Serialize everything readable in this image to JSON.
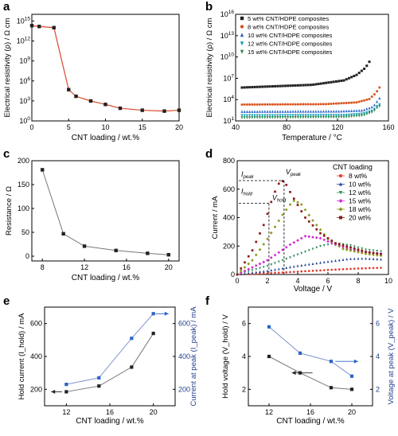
{
  "figure": {
    "panels": [
      "a",
      "b",
      "c",
      "d",
      "e",
      "f"
    ]
  },
  "colors": {
    "axis": "#000000",
    "red": "#d9482b",
    "black": "#222222",
    "gray": "#777777",
    "blue": "#2a64c8",
    "navy": "#23408e",
    "orange": "#d9541e",
    "teal": "#0f9bb0",
    "green": "#2e8b57",
    "magenta": "#d12ad1",
    "olive": "#8a9a1a",
    "darkred": "#8b1a1a",
    "lightred": "#e23a2e"
  },
  "chart_data": [
    {
      "id": "a",
      "type": "line",
      "xlabel": "CNT loading / wt.%",
      "ylabel": "Electrical resistivity (ρ) / Ω cm",
      "xlim": [
        0,
        20
      ],
      "ylim_log10": [
        0,
        16
      ],
      "xticks": [
        "0",
        "5",
        "10",
        "15",
        "20"
      ],
      "yticks_log10": [
        0,
        3,
        6,
        9,
        12,
        15
      ],
      "ytick_labels": [
        "10^0",
        "10^3",
        "10^6",
        "10^9",
        "10^12",
        "10^15"
      ],
      "series": [
        {
          "x": [
            0,
            1,
            3,
            5,
            6,
            8,
            10,
            12,
            15,
            18,
            20
          ],
          "y": [
            200000000000000.0,
            150000000000000.0,
            100000000000000.0,
            50000.0,
            5000.0,
            1000,
            300,
            80,
            40,
            30,
            40
          ]
        }
      ]
    },
    {
      "id": "b",
      "type": "scatter",
      "xlabel": "Temperature / °C",
      "ylabel": "Electrical resistivity (ρ) / Ω cm",
      "xlim": [
        40,
        160
      ],
      "ylim_log10": [
        1,
        16
      ],
      "xticks": [
        "40",
        "80",
        "120",
        "160"
      ],
      "yticks_log10": [
        1,
        4,
        7,
        10,
        13,
        16
      ],
      "ytick_labels": [
        "10^1",
        "10^4",
        "10^7",
        "10^10",
        "10^13",
        "10^16"
      ],
      "series": [
        {
          "name": "5 wt% CNT/HDPE composites",
          "start": 500000.0,
          "curve": [
            [
              100,
              1200000.0
            ],
            [
              125,
              5000000.0
            ],
            [
              135,
              30000000.0
            ],
            [
              142,
              300000000.0
            ],
            [
              146,
              4000000000.0
            ]
          ]
        },
        {
          "name": "8 wt% CNT/HDPE composites",
          "start": 2000.0,
          "curve": [
            [
              110,
              2300.0
            ],
            [
              135,
              4000.0
            ],
            [
              145,
              12000.0
            ],
            [
              150,
              80000.0
            ],
            [
              153,
              500000.0
            ]
          ]
        },
        {
          "name": "10 wt% CNT/HDPE composites",
          "start": 200,
          "curve": [
            [
              120,
              220
            ],
            [
              140,
              300
            ],
            [
              148,
              1000
            ],
            [
              151,
              5000.0
            ],
            [
              153,
              15000.0
            ]
          ]
        },
        {
          "name": "12 wt% CNT/HDPE composites",
          "start": 60,
          "curve": [
            [
              125,
              65
            ],
            [
              140,
              100
            ],
            [
              148,
              300
            ],
            [
              151,
              1200
            ],
            [
              154,
              2500
            ]
          ]
        },
        {
          "name": "15 wt% CNT/HDPE composites",
          "start": 30,
          "curve": [
            [
              125,
              35
            ],
            [
              140,
              60
            ],
            [
              148,
              200
            ],
            [
              151,
              700
            ],
            [
              154,
              1500
            ]
          ]
        }
      ]
    },
    {
      "id": "c",
      "type": "line",
      "xlabel": "CNT loading / wt.%",
      "ylabel": "Resistance / Ω",
      "xlim": [
        7,
        21
      ],
      "ylim": [
        -10,
        200
      ],
      "xticks": [
        "8",
        "12",
        "16",
        "20"
      ],
      "yticks": [
        "0",
        "50",
        "100",
        "150",
        "200"
      ],
      "series": [
        {
          "x": [
            8,
            10,
            12,
            15,
            18,
            20
          ],
          "y": [
            181,
            47,
            21,
            12,
            6,
            3
          ]
        }
      ]
    },
    {
      "id": "d",
      "type": "scatter",
      "xlabel": "Voltage / V",
      "ylabel": "Current / mA",
      "xlim": [
        0,
        10
      ],
      "ylim": [
        0,
        800
      ],
      "xticks": [
        "0",
        "2",
        "4",
        "6",
        "8",
        "10"
      ],
      "yticks": [
        "0",
        "200",
        "400",
        "600",
        "800"
      ],
      "legend_title": "CNT loading",
      "annotations": [
        "I",
        "peak",
        "V",
        "peak",
        "I",
        "hold",
        "V",
        "hold"
      ],
      "series": [
        {
          "name": "8 wt%",
          "curve": [
            [
              0,
              0
            ],
            [
              2,
              8
            ],
            [
              4,
              20
            ],
            [
              6,
              32
            ],
            [
              8,
              42
            ],
            [
              9.7,
              48
            ]
          ]
        },
        {
          "name": "10 wt%",
          "curve": [
            [
              0,
              0
            ],
            [
              2,
              25
            ],
            [
              4,
              60
            ],
            [
              6,
              90
            ],
            [
              7.5,
              110
            ],
            [
              8.5,
              112
            ],
            [
              9.7,
              105
            ]
          ]
        },
        {
          "name": "12 wt%",
          "curve": [
            [
              0,
              0
            ],
            [
              2,
              60
            ],
            [
              4,
              140
            ],
            [
              5.5,
              200
            ],
            [
              6.5,
              220
            ],
            [
              7.5,
              205
            ],
            [
              8.5,
              175
            ],
            [
              9.7,
              160
            ]
          ]
        },
        {
          "name": "15 wt%",
          "curve": [
            [
              0,
              0
            ],
            [
              2,
              100
            ],
            [
              3.5,
              210
            ],
            [
              4.5,
              270
            ],
            [
              5.5,
              255
            ],
            [
              6.5,
              210
            ],
            [
              7.5,
              175
            ],
            [
              8.5,
              155
            ],
            [
              9.7,
              145
            ]
          ]
        },
        {
          "name": "18 wt%",
          "curve": [
            [
              0,
              0
            ],
            [
              1,
              100
            ],
            [
              2,
              250
            ],
            [
              3,
              420
            ],
            [
              3.7,
              520
            ],
            [
              4.2,
              500
            ],
            [
              5,
              380
            ],
            [
              6,
              250
            ],
            [
              7,
              180
            ],
            [
              8.5,
              145
            ],
            [
              9.7,
              130
            ]
          ]
        },
        {
          "name": "20 wt%",
          "curve": [
            [
              0,
              0
            ],
            [
              1,
              170
            ],
            [
              1.8,
              360
            ],
            [
              2.4,
              560
            ],
            [
              2.8,
              650
            ],
            [
              3.1,
              660
            ],
            [
              3.6,
              560
            ],
            [
              4.5,
              400
            ],
            [
              5.5,
              290
            ],
            [
              6.5,
              220
            ],
            [
              7.5,
              190
            ],
            [
              8.5,
              160
            ],
            [
              9.7,
              140
            ]
          ]
        }
      ]
    },
    {
      "id": "e",
      "type": "line",
      "xlabel": "CNT loading / wt.%",
      "ylabel_left": "Hold current (I_hold) / mA",
      "ylabel_right": "Current at peak (I_peak) / mA",
      "xlim": [
        10,
        22
      ],
      "ylim": [
        100,
        700
      ],
      "xticks": [
        "12",
        "16",
        "20"
      ],
      "yticks_left": [
        "200",
        "400",
        "600"
      ],
      "yticks_right": [
        "200",
        "400",
        "600"
      ],
      "series": [
        {
          "name": "I_hold",
          "axis": "left",
          "x": [
            12,
            15,
            18,
            20
          ],
          "y": [
            185,
            220,
            335,
            540
          ]
        },
        {
          "name": "I_peak",
          "axis": "right",
          "x": [
            12,
            15,
            18,
            20
          ],
          "y": [
            230,
            270,
            510,
            660
          ]
        }
      ]
    },
    {
      "id": "f",
      "type": "line",
      "xlabel": "CNT loading / wt.%",
      "ylabel_left": "Hold voltage (V_hold) / V",
      "ylabel_right": "Voltage at peak (V_peak) / V",
      "xlim": [
        10,
        22
      ],
      "ylim": [
        1,
        7
      ],
      "xticks": [
        "12",
        "16",
        "20"
      ],
      "yticks_left": [
        "2",
        "4",
        "6"
      ],
      "yticks_right": [
        "2",
        "4",
        "6"
      ],
      "series": [
        {
          "name": "V_hold",
          "axis": "left",
          "x": [
            12,
            15,
            18,
            20
          ],
          "y": [
            4.0,
            3.0,
            2.1,
            2.0
          ]
        },
        {
          "name": "V_peak",
          "axis": "right",
          "x": [
            12,
            15,
            18,
            20
          ],
          "y": [
            5.8,
            4.2,
            3.7,
            2.8
          ]
        }
      ]
    }
  ]
}
